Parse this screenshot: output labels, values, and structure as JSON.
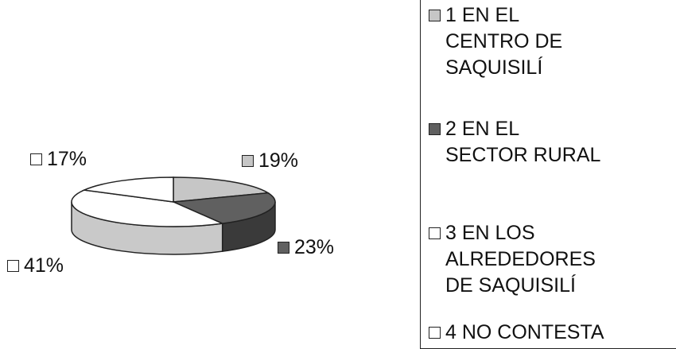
{
  "chart_data": {
    "type": "pie",
    "title": "",
    "slices": [
      {
        "category": "1 EN EL\nCENTRO DE\nSAQUISILÍ",
        "value": 19,
        "label": "19%",
        "color": "#c6c6c6"
      },
      {
        "category": "2 EN EL\nSECTOR RURAL",
        "value": 23,
        "label": "23%",
        "color": "#606060"
      },
      {
        "category": "3 EN LOS\nALREDEDORES\nDE SAQUISILÍ",
        "value": 41,
        "label": "41%",
        "color": "#ffffff"
      },
      {
        "category": "4 NO CONTESTA",
        "value": 17,
        "label": "17%",
        "color": "#ffffff"
      }
    ],
    "legend_position": "right"
  }
}
